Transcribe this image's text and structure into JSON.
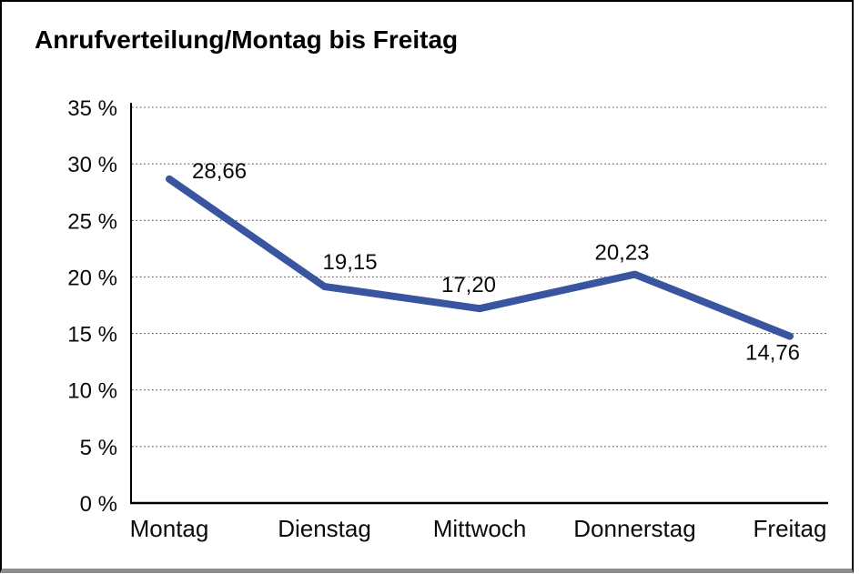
{
  "chart_data": {
    "type": "line",
    "title": "Anrufverteilung/Montag bis Freitag",
    "categories": [
      "Montag",
      "Dienstag",
      "Mittwoch",
      "Donnerstag",
      "Freitag"
    ],
    "series": [
      {
        "name": "Anrufverteilung",
        "values": [
          28.66,
          19.15,
          17.2,
          20.23,
          14.76
        ],
        "color": "#3A55A0"
      }
    ],
    "data_labels": [
      "28,66",
      "19,15",
      "17,20",
      "20,23",
      "14,76"
    ],
    "y_ticks": [
      {
        "value": 0,
        "label": "0 %"
      },
      {
        "value": 5,
        "label": "5 %"
      },
      {
        "value": 10,
        "label": "10 %"
      },
      {
        "value": 15,
        "label": "15 %"
      },
      {
        "value": 20,
        "label": "20 %"
      },
      {
        "value": 25,
        "label": "25 %"
      },
      {
        "value": 30,
        "label": "30 %"
      },
      {
        "value": 35,
        "label": "35 %"
      }
    ],
    "ylim": [
      0,
      35
    ],
    "xlabel": "",
    "ylabel": "",
    "grid": "horizontal-dotted",
    "legend": "none",
    "axis_color": "#000000",
    "gridline_color": "#555555"
  }
}
